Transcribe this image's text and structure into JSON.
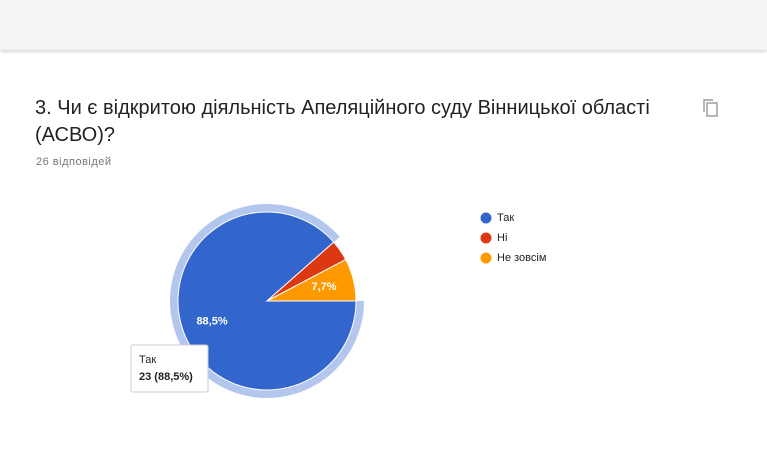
{
  "question": "3. Чи є відкритою діяльність Апеляційного суду Вінницької області (АСВО)?",
  "responses": "26 відповідей",
  "chart_data": {
    "type": "pie",
    "categories": [
      "Так",
      "Ні",
      "Не зовсім"
    ],
    "values": [
      88.5,
      3.8,
      7.7
    ],
    "value_labels": [
      "88,5%",
      null,
      "7,7%"
    ],
    "colors": [
      "#3366cc",
      "#dc3912",
      "#ff9900"
    ],
    "highlight": 0,
    "tooltip": {
      "title": "Так",
      "text": "23 (88,5%)"
    }
  }
}
